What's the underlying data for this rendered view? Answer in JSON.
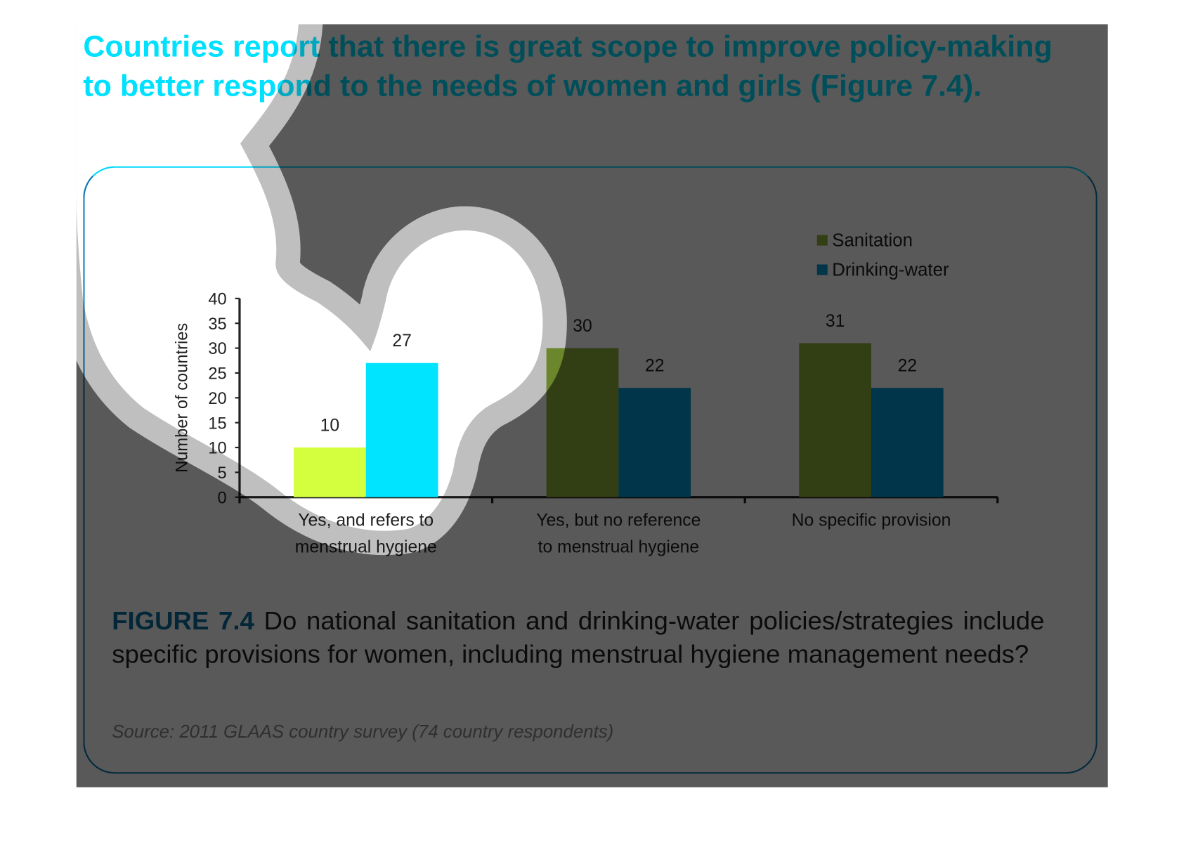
{
  "heading": "Countries report that there is great scope to improve policy-making to better respond to the needs of women and girls (Figure 7.4).",
  "caption": {
    "label": "FIGURE 7.4",
    "text": " Do national sanitation and drinking-water policies/strategies include specific provisions for women, including menstrual hygiene management needs?"
  },
  "source": "Source: 2011 GLAAS country survey (74 country respondents)",
  "chart_data": {
    "type": "bar",
    "title": "",
    "xlabel": "",
    "ylabel": "Number of countries",
    "ylim": [
      0,
      40
    ],
    "yticks": [
      "0",
      "5",
      "10",
      "15",
      "20",
      "25",
      "30",
      "35",
      "40"
    ],
    "categories": [
      [
        "Yes, and refers to",
        "menstrual hygiene"
      ],
      [
        "Yes, but no reference",
        "to menstrual hygiene"
      ],
      [
        "No specific provision"
      ]
    ],
    "series": [
      {
        "name": "Sanitation",
        "values": [
          10,
          30,
          31
        ],
        "colors": [
          "#d4ff3f",
          "#8fb33a",
          "#8fb33a"
        ]
      },
      {
        "name": "Drinking-water",
        "values": [
          27,
          22,
          22
        ],
        "colors": [
          "#00e4ff",
          "#0097d4",
          "#0097d4"
        ]
      }
    ],
    "legend_colors": [
      "#8fb33a",
      "#0097d4"
    ],
    "legend": "top-right",
    "grid": false
  }
}
